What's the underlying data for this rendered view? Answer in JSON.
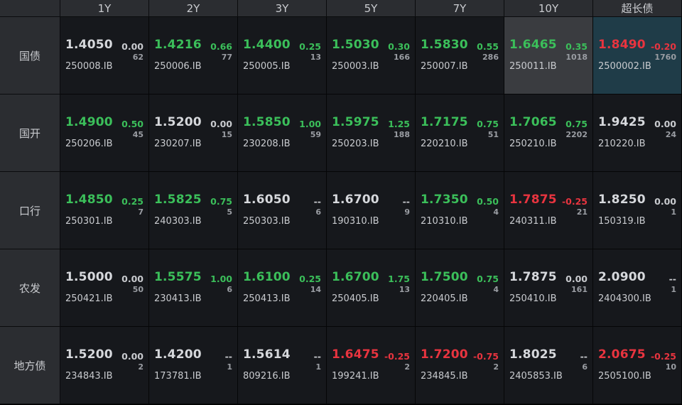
{
  "columns": [
    "1Y",
    "2Y",
    "3Y",
    "5Y",
    "7Y",
    "10Y",
    "超长债"
  ],
  "rows": [
    {
      "label": "国债",
      "cells": [
        {
          "yield": "1.4050",
          "change": "0.00",
          "volume": "62",
          "code": "250008.IB",
          "trend": "flat",
          "highlight": ""
        },
        {
          "yield": "1.4216",
          "change": "0.66",
          "volume": "77",
          "code": "250006.IB",
          "trend": "up",
          "highlight": ""
        },
        {
          "yield": "1.4400",
          "change": "0.25",
          "volume": "13",
          "code": "250005.IB",
          "trend": "up",
          "highlight": ""
        },
        {
          "yield": "1.5030",
          "change": "0.30",
          "volume": "166",
          "code": "250003.IB",
          "trend": "up",
          "highlight": ""
        },
        {
          "yield": "1.5830",
          "change": "0.55",
          "volume": "286",
          "code": "250007.IB",
          "trend": "up",
          "highlight": ""
        },
        {
          "yield": "1.6465",
          "change": "0.35",
          "volume": "1018",
          "code": "250011.IB",
          "trend": "up",
          "highlight": "gray"
        },
        {
          "yield": "1.8490",
          "change": "-0.20",
          "volume": "1760",
          "code": "2500002.IB",
          "trend": "down",
          "highlight": "teal"
        }
      ]
    },
    {
      "label": "国开",
      "cells": [
        {
          "yield": "1.4900",
          "change": "0.50",
          "volume": "45",
          "code": "250206.IB",
          "trend": "up",
          "highlight": ""
        },
        {
          "yield": "1.5200",
          "change": "0.00",
          "volume": "15",
          "code": "230207.IB",
          "trend": "flat",
          "highlight": ""
        },
        {
          "yield": "1.5850",
          "change": "1.00",
          "volume": "59",
          "code": "230208.IB",
          "trend": "up",
          "highlight": ""
        },
        {
          "yield": "1.5975",
          "change": "1.25",
          "volume": "188",
          "code": "250203.IB",
          "trend": "up",
          "highlight": ""
        },
        {
          "yield": "1.7175",
          "change": "0.75",
          "volume": "51",
          "code": "220210.IB",
          "trend": "up",
          "highlight": ""
        },
        {
          "yield": "1.7065",
          "change": "0.75",
          "volume": "2202",
          "code": "250210.IB",
          "trend": "up",
          "highlight": ""
        },
        {
          "yield": "1.9425",
          "change": "0.00",
          "volume": "24",
          "code": "210220.IB",
          "trend": "flat",
          "highlight": ""
        }
      ]
    },
    {
      "label": "口行",
      "cells": [
        {
          "yield": "1.4850",
          "change": "0.25",
          "volume": "7",
          "code": "250301.IB",
          "trend": "up",
          "highlight": ""
        },
        {
          "yield": "1.5825",
          "change": "0.75",
          "volume": "5",
          "code": "240303.IB",
          "trend": "up",
          "highlight": ""
        },
        {
          "yield": "1.6050",
          "change": "--",
          "volume": "6",
          "code": "250303.IB",
          "trend": "flat",
          "highlight": ""
        },
        {
          "yield": "1.6700",
          "change": "--",
          "volume": "9",
          "code": "190310.IB",
          "trend": "flat",
          "highlight": ""
        },
        {
          "yield": "1.7350",
          "change": "0.50",
          "volume": "4",
          "code": "210310.IB",
          "trend": "up",
          "highlight": ""
        },
        {
          "yield": "1.7875",
          "change": "-0.25",
          "volume": "21",
          "code": "240311.IB",
          "trend": "down",
          "highlight": ""
        },
        {
          "yield": "1.8250",
          "change": "0.00",
          "volume": "1",
          "code": "150319.IB",
          "trend": "flat",
          "highlight": ""
        }
      ]
    },
    {
      "label": "农发",
      "cells": [
        {
          "yield": "1.5000",
          "change": "0.00",
          "volume": "50",
          "code": "250421.IB",
          "trend": "flat",
          "highlight": ""
        },
        {
          "yield": "1.5575",
          "change": "1.00",
          "volume": "6",
          "code": "230413.IB",
          "trend": "up",
          "highlight": ""
        },
        {
          "yield": "1.6100",
          "change": "0.25",
          "volume": "14",
          "code": "250413.IB",
          "trend": "up",
          "highlight": ""
        },
        {
          "yield": "1.6700",
          "change": "1.75",
          "volume": "13",
          "code": "250405.IB",
          "trend": "up",
          "highlight": ""
        },
        {
          "yield": "1.7500",
          "change": "0.75",
          "volume": "4",
          "code": "220405.IB",
          "trend": "up",
          "highlight": ""
        },
        {
          "yield": "1.7875",
          "change": "0.00",
          "volume": "161",
          "code": "250410.IB",
          "trend": "flat",
          "highlight": ""
        },
        {
          "yield": "2.0900",
          "change": "--",
          "volume": "1",
          "code": "2404300.IB",
          "trend": "flat",
          "highlight": ""
        }
      ]
    },
    {
      "label": "地方债",
      "cells": [
        {
          "yield": "1.5200",
          "change": "0.00",
          "volume": "2",
          "code": "234843.IB",
          "trend": "flat",
          "highlight": ""
        },
        {
          "yield": "1.4200",
          "change": "--",
          "volume": "1",
          "code": "173781.IB",
          "trend": "flat",
          "highlight": ""
        },
        {
          "yield": "1.5614",
          "change": "--",
          "volume": "1",
          "code": "809216.IB",
          "trend": "flat",
          "highlight": ""
        },
        {
          "yield": "1.6475",
          "change": "-0.25",
          "volume": "2",
          "code": "199241.IB",
          "trend": "down",
          "highlight": ""
        },
        {
          "yield": "1.7200",
          "change": "-0.75",
          "volume": "2",
          "code": "234845.IB",
          "trend": "down",
          "highlight": ""
        },
        {
          "yield": "1.8025",
          "change": "--",
          "volume": "6",
          "code": "2405853.IB",
          "trend": "flat",
          "highlight": ""
        },
        {
          "yield": "2.0675",
          "change": "-0.25",
          "volume": "10",
          "code": "2505100.IB",
          "trend": "down",
          "highlight": ""
        }
      ]
    }
  ],
  "colors": {
    "up": "#3bbf5a",
    "down": "#e8343f",
    "flat": "#d6d8dc",
    "header_bg": "#2b2d31",
    "cell_bg": "#16181c",
    "highlight_gray": "#3a3c40",
    "highlight_teal": "#1f3c48"
  }
}
